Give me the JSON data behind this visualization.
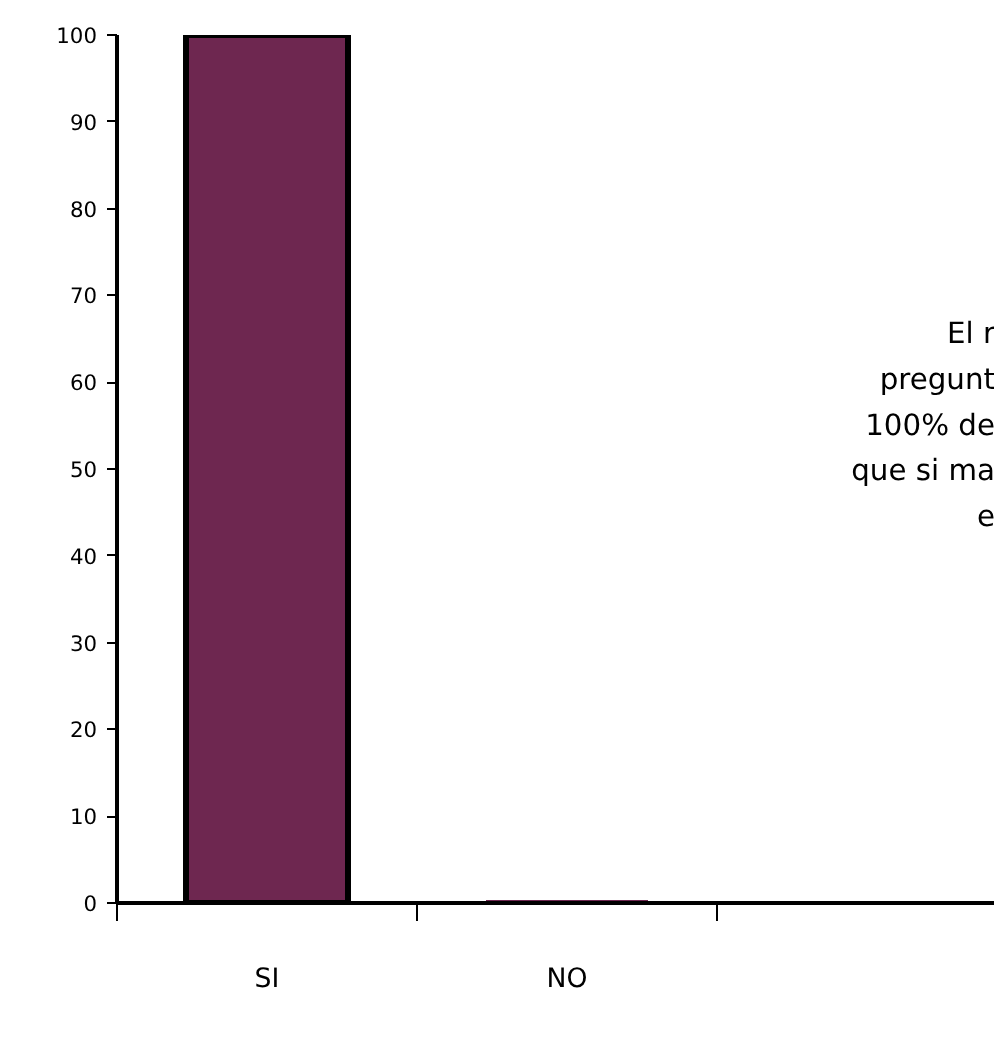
{
  "chart_data": {
    "type": "bar",
    "categories": [
      "SI",
      "NO",
      null
    ],
    "values": [
      100,
      0,
      null
    ],
    "color": "#6e2750",
    "ylim": [
      0,
      100
    ],
    "yticks": [
      0,
      10,
      20,
      30,
      40,
      50,
      60,
      70,
      80,
      90,
      100
    ],
    "grid": false,
    "annotations": [
      "El r\npregunt\n100% de\nque si ma\ne"
    ]
  }
}
